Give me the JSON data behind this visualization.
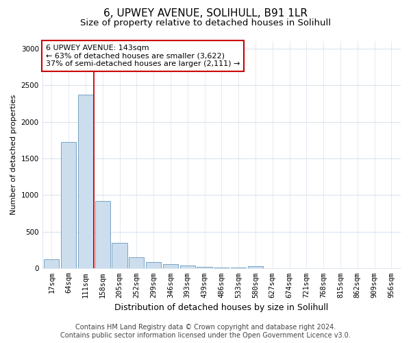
{
  "title1": "6, UPWEY AVENUE, SOLIHULL, B91 1LR",
  "title2": "Size of property relative to detached houses in Solihull",
  "xlabel": "Distribution of detached houses by size in Solihull",
  "ylabel": "Number of detached properties",
  "categories": [
    "17sqm",
    "64sqm",
    "111sqm",
    "158sqm",
    "205sqm",
    "252sqm",
    "299sqm",
    "346sqm",
    "393sqm",
    "439sqm",
    "486sqm",
    "533sqm",
    "580sqm",
    "627sqm",
    "674sqm",
    "721sqm",
    "768sqm",
    "815sqm",
    "862sqm",
    "909sqm",
    "956sqm"
  ],
  "values": [
    120,
    1720,
    2370,
    920,
    350,
    155,
    90,
    55,
    40,
    20,
    15,
    8,
    35,
    5,
    2,
    2,
    1,
    1,
    1,
    1,
    1
  ],
  "bar_color": "#ccdded",
  "bar_edge_color": "#6699bb",
  "vline_color": "#cc0000",
  "vline_pos": 2.5,
  "annotation_text": "6 UPWEY AVENUE: 143sqm\n← 63% of detached houses are smaller (3,622)\n37% of semi-detached houses are larger (2,111) →",
  "annotation_box_color": "#ffffff",
  "annotation_box_edge": "#cc0000",
  "ylim": [
    0,
    3100
  ],
  "yticks": [
    0,
    500,
    1000,
    1500,
    2000,
    2500,
    3000
  ],
  "footer1": "Contains HM Land Registry data © Crown copyright and database right 2024.",
  "footer2": "Contains public sector information licensed under the Open Government Licence v3.0.",
  "bg_color": "#ffffff",
  "grid_color": "#d0dcea",
  "title1_fontsize": 11,
  "title2_fontsize": 9.5,
  "xlabel_fontsize": 9,
  "ylabel_fontsize": 8,
  "tick_fontsize": 7.5,
  "ann_fontsize": 8,
  "footer_fontsize": 7
}
